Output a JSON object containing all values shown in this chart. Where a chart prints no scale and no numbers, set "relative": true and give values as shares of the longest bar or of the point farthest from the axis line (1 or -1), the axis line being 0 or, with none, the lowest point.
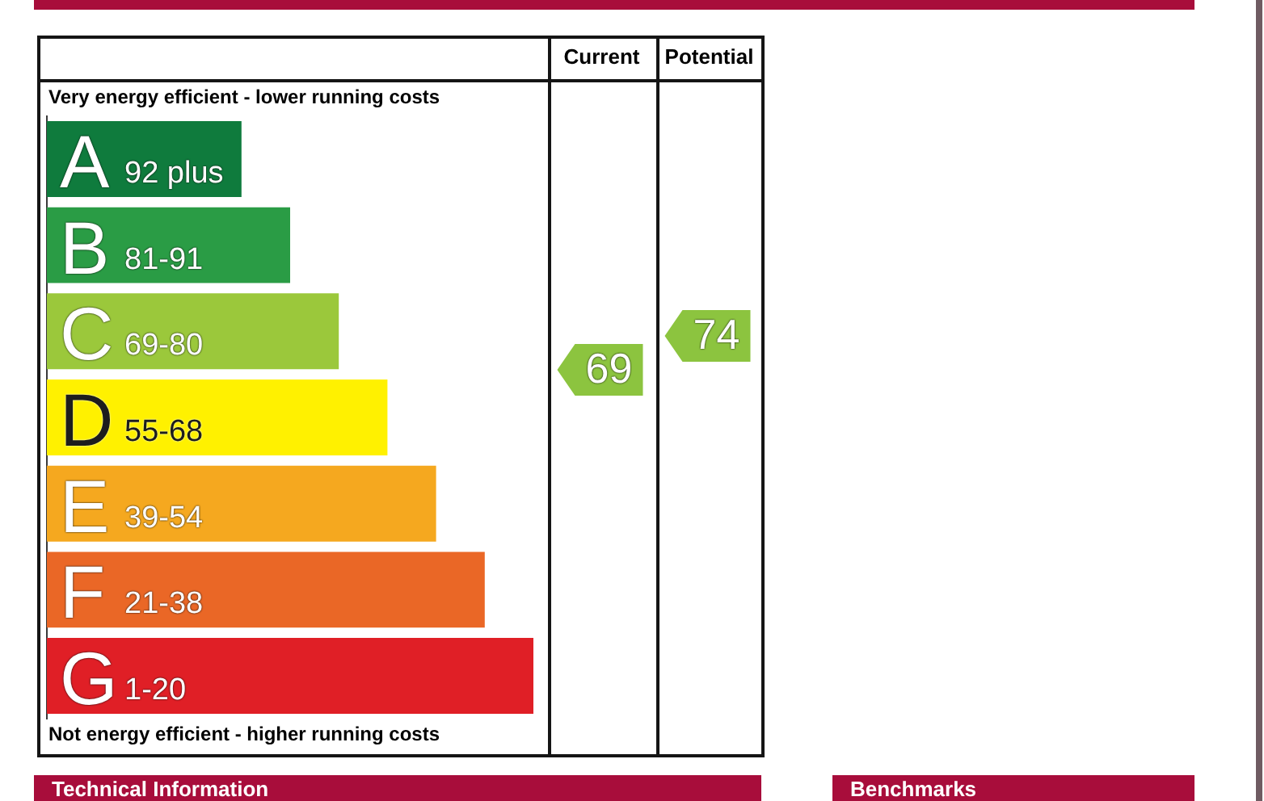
{
  "chart_data": [
    {
      "type": "bar",
      "orientation": "horizontal",
      "relative": true,
      "categories": [
        "A",
        "B",
        "C",
        "D",
        "E",
        "F",
        "G"
      ],
      "values": [
        0.4,
        0.5,
        0.6,
        0.7,
        0.8,
        0.9,
        1
      ],
      "colors": [
        "#0f7b3d",
        "#2a9c45",
        "#9bc83b",
        "#fff100",
        "#f5a81f",
        "#ea6726",
        "#e01f26"
      ],
      "annotations": [
        "Very energy efficient - lower running costs",
        "92 plus",
        "81-91",
        "69-80",
        "55-68",
        "39-54",
        "21-38",
        "1-20",
        "Not energy efficient - higher running costs"
      ]
    },
    {
      "type": "other",
      "categories": [
        "Current",
        "Potential"
      ],
      "values": [
        69,
        74
      ],
      "colors": [
        "#8cc43f",
        "#8cc43f"
      ],
      "data_labels": true
    },
    {
      "type": "other",
      "annotations": [
        "Technical Information",
        "Benchmarks"
      ]
    }
  ]
}
